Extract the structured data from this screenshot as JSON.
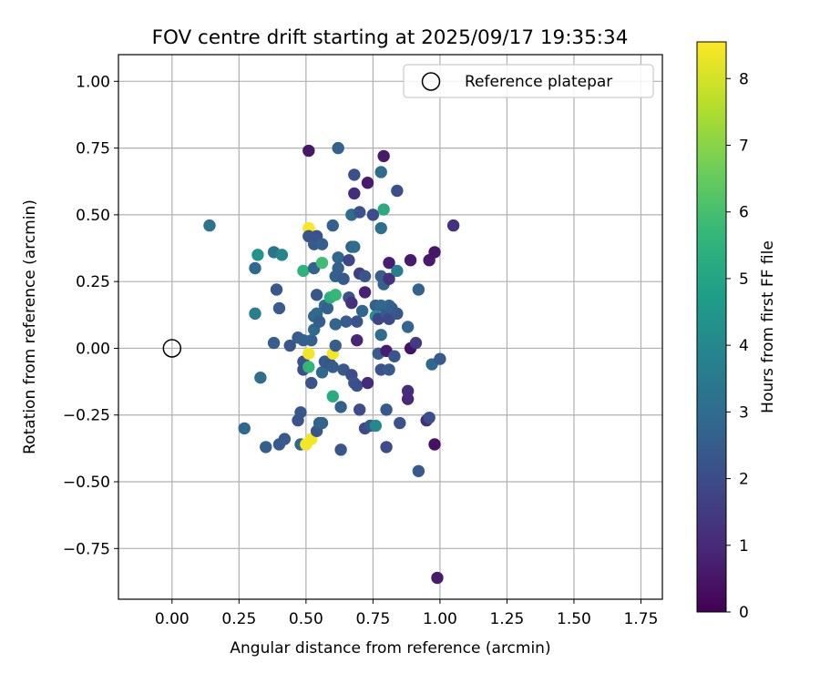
{
  "chart_data": {
    "type": "scatter",
    "title": "FOV centre drift starting at 2025/09/17 19:35:34",
    "xlabel": "Angular distance from reference (arcmin)",
    "ylabel": "Rotation from reference (arcmin)",
    "xlim": [
      -0.2,
      1.83
    ],
    "ylim": [
      -0.94,
      1.1
    ],
    "xticks": [
      0.0,
      0.25,
      0.5,
      0.75,
      1.0,
      1.25,
      1.5,
      1.75
    ],
    "xtick_labels": [
      "0.00",
      "0.25",
      "0.50",
      "0.75",
      "1.00",
      "1.25",
      "1.50",
      "1.75"
    ],
    "yticks": [
      -0.75,
      -0.5,
      -0.25,
      0.0,
      0.25,
      0.5,
      0.75,
      1.0
    ],
    "ytick_labels": [
      "−0.75",
      "−0.50",
      "−0.25",
      "0.00",
      "0.25",
      "0.50",
      "0.75",
      "1.00"
    ],
    "grid": true,
    "legend": {
      "position": "top-right",
      "entries": [
        "Reference platepar"
      ]
    },
    "reference_point": {
      "x": 0.0,
      "y": 0.0,
      "label": "Reference platepar"
    },
    "colorbar": {
      "label": "Hours from first FF file",
      "range": [
        0,
        8.55
      ],
      "ticks": [
        0,
        1,
        2,
        3,
        4,
        5,
        6,
        7,
        8
      ],
      "tick_labels": [
        "0",
        "1",
        "2",
        "3",
        "4",
        "5",
        "6",
        "7",
        "8"
      ],
      "colormap": "viridis",
      "colors": [
        "#440154",
        "#482878",
        "#3e4989",
        "#31688e",
        "#26828e",
        "#1f9e89",
        "#35b779",
        "#6ece58",
        "#b5de2b",
        "#fde725"
      ]
    },
    "points": [
      {
        "x": 0.14,
        "y": 0.46,
        "h": 3.3
      },
      {
        "x": 0.27,
        "y": -0.3,
        "h": 2.9
      },
      {
        "x": 0.31,
        "y": 0.3,
        "h": 2.9
      },
      {
        "x": 0.31,
        "y": 0.13,
        "h": 3.6
      },
      {
        "x": 0.32,
        "y": 0.35,
        "h": 4.4
      },
      {
        "x": 0.33,
        "y": -0.11,
        "h": 3.1
      },
      {
        "x": 0.35,
        "y": -0.37,
        "h": 2.6
      },
      {
        "x": 0.38,
        "y": 0.36,
        "h": 3.3
      },
      {
        "x": 0.38,
        "y": 0.02,
        "h": 2.5
      },
      {
        "x": 0.39,
        "y": 0.22,
        "h": 2.3
      },
      {
        "x": 0.4,
        "y": 0.15,
        "h": 2.5
      },
      {
        "x": 0.4,
        "y": -0.36,
        "h": 2.4
      },
      {
        "x": 0.41,
        "y": 0.35,
        "h": 3.9
      },
      {
        "x": 0.42,
        "y": -0.34,
        "h": 2.4
      },
      {
        "x": 0.44,
        "y": 0.01,
        "h": 2.3
      },
      {
        "x": 0.47,
        "y": -0.27,
        "h": 2.2
      },
      {
        "x": 0.47,
        "y": 0.04,
        "h": 2.5
      },
      {
        "x": 0.48,
        "y": -0.24,
        "h": 2.3
      },
      {
        "x": 0.48,
        "y": -0.36,
        "h": 2.8
      },
      {
        "x": 0.49,
        "y": 0.29,
        "h": 5.5
      },
      {
        "x": 0.49,
        "y": 0.03,
        "h": 2.6
      },
      {
        "x": 0.49,
        "y": -0.05,
        "h": 2.2
      },
      {
        "x": 0.49,
        "y": -0.08,
        "h": 2.1
      },
      {
        "x": 0.5,
        "y": -0.36,
        "h": 8.4
      },
      {
        "x": 0.51,
        "y": 0.74,
        "h": 0.5
      },
      {
        "x": 0.51,
        "y": 0.45,
        "h": 8.5
      },
      {
        "x": 0.51,
        "y": 0.42,
        "h": 2.3
      },
      {
        "x": 0.51,
        "y": -0.02,
        "h": 8.4
      },
      {
        "x": 0.51,
        "y": -0.07,
        "h": 5.6
      },
      {
        "x": 0.52,
        "y": 0.03,
        "h": 2.6
      },
      {
        "x": 0.52,
        "y": -0.13,
        "h": 2.2
      },
      {
        "x": 0.52,
        "y": -0.34,
        "h": 8.4
      },
      {
        "x": 0.53,
        "y": 0.3,
        "h": 2.7
      },
      {
        "x": 0.53,
        "y": 0.39,
        "h": 2.4
      },
      {
        "x": 0.53,
        "y": 0.12,
        "h": 2.8
      },
      {
        "x": 0.53,
        "y": 0.07,
        "h": 2.9
      },
      {
        "x": 0.54,
        "y": -0.31,
        "h": 2.3
      },
      {
        "x": 0.54,
        "y": 0.42,
        "h": 2.2
      },
      {
        "x": 0.54,
        "y": 0.2,
        "h": 2.3
      },
      {
        "x": 0.54,
        "y": 0.13,
        "h": 2.9
      },
      {
        "x": 0.55,
        "y": 0.1,
        "h": 2.5
      },
      {
        "x": 0.55,
        "y": -0.28,
        "h": 2.6
      },
      {
        "x": 0.56,
        "y": 0.39,
        "h": 2.6
      },
      {
        "x": 0.56,
        "y": 0.32,
        "h": 5.9
      },
      {
        "x": 0.56,
        "y": -0.28,
        "h": 2.7
      },
      {
        "x": 0.56,
        "y": -0.09,
        "h": 2.9
      },
      {
        "x": 0.57,
        "y": -0.05,
        "h": 2.4
      },
      {
        "x": 0.57,
        "y": 0.16,
        "h": 3.0
      },
      {
        "x": 0.58,
        "y": 0.15,
        "h": 2.6
      },
      {
        "x": 0.59,
        "y": 0.19,
        "h": 5.4
      },
      {
        "x": 0.59,
        "y": -0.06,
        "h": 2.3
      },
      {
        "x": 0.6,
        "y": 0.46,
        "h": 2.6
      },
      {
        "x": 0.6,
        "y": -0.02,
        "h": 8.4
      },
      {
        "x": 0.6,
        "y": -0.18,
        "h": 5.2
      },
      {
        "x": 0.6,
        "y": -0.07,
        "h": 2.5
      },
      {
        "x": 0.61,
        "y": 0.27,
        "h": 2.6
      },
      {
        "x": 0.61,
        "y": 0.2,
        "h": 5.7
      },
      {
        "x": 0.61,
        "y": 0.09,
        "h": 2.8
      },
      {
        "x": 0.61,
        "y": 0.01,
        "h": 2.5
      },
      {
        "x": 0.62,
        "y": 0.75,
        "h": 2.7
      },
      {
        "x": 0.62,
        "y": 0.34,
        "h": 2.9
      },
      {
        "x": 0.62,
        "y": 0.3,
        "h": 2.6
      },
      {
        "x": 0.63,
        "y": -0.22,
        "h": 2.6
      },
      {
        "x": 0.63,
        "y": -0.38,
        "h": 2.3
      },
      {
        "x": 0.64,
        "y": 0.26,
        "h": 2.4
      },
      {
        "x": 0.64,
        "y": -0.08,
        "h": 2.4
      },
      {
        "x": 0.65,
        "y": 0.1,
        "h": 2.5
      },
      {
        "x": 0.66,
        "y": 0.33,
        "h": 1.8
      },
      {
        "x": 0.66,
        "y": 0.19,
        "h": 2.2
      },
      {
        "x": 0.67,
        "y": 0.5,
        "h": 3.0
      },
      {
        "x": 0.67,
        "y": 0.38,
        "h": 2.6
      },
      {
        "x": 0.67,
        "y": 0.17,
        "h": 1.2
      },
      {
        "x": 0.67,
        "y": -0.1,
        "h": 2.0
      },
      {
        "x": 0.68,
        "y": 0.65,
        "h": 2.1
      },
      {
        "x": 0.68,
        "y": 0.58,
        "h": 1.1
      },
      {
        "x": 0.68,
        "y": 0.38,
        "h": 3.0
      },
      {
        "x": 0.68,
        "y": -0.13,
        "h": 2.3
      },
      {
        "x": 0.69,
        "y": 0.1,
        "h": 2.2
      },
      {
        "x": 0.69,
        "y": 0.03,
        "h": 0.9
      },
      {
        "x": 0.69,
        "y": -0.14,
        "h": 2.1
      },
      {
        "x": 0.7,
        "y": 0.51,
        "h": 2.2
      },
      {
        "x": 0.7,
        "y": 0.28,
        "h": 1.6
      },
      {
        "x": 0.7,
        "y": -0.23,
        "h": 2.0
      },
      {
        "x": 0.71,
        "y": 0.14,
        "h": 2.8
      },
      {
        "x": 0.72,
        "y": 0.27,
        "h": 2.3
      },
      {
        "x": 0.72,
        "y": 0.21,
        "h": 0.8
      },
      {
        "x": 0.72,
        "y": -0.3,
        "h": 1.9
      },
      {
        "x": 0.73,
        "y": 0.62,
        "h": 0.6
      },
      {
        "x": 0.73,
        "y": -0.13,
        "h": 1.0
      },
      {
        "x": 0.74,
        "y": -0.29,
        "h": 2.3
      },
      {
        "x": 0.75,
        "y": 0.5,
        "h": 2.0
      },
      {
        "x": 0.76,
        "y": 0.16,
        "h": 2.6
      },
      {
        "x": 0.76,
        "y": 0.12,
        "h": 4.3
      },
      {
        "x": 0.76,
        "y": -0.29,
        "h": 4.0
      },
      {
        "x": 0.77,
        "y": 0.11,
        "h": 1.8
      },
      {
        "x": 0.77,
        "y": -0.02,
        "h": 2.5
      },
      {
        "x": 0.78,
        "y": 0.66,
        "h": 3.0
      },
      {
        "x": 0.78,
        "y": 0.45,
        "h": 3.1
      },
      {
        "x": 0.78,
        "y": 0.27,
        "h": 2.5
      },
      {
        "x": 0.78,
        "y": 0.16,
        "h": 2.9
      },
      {
        "x": 0.78,
        "y": 0.05,
        "h": 3.0
      },
      {
        "x": 0.78,
        "y": -0.08,
        "h": 2.2
      },
      {
        "x": 0.79,
        "y": 0.72,
        "h": 0.6
      },
      {
        "x": 0.79,
        "y": 0.52,
        "h": 5.2
      },
      {
        "x": 0.79,
        "y": 0.24,
        "h": 2.7
      },
      {
        "x": 0.8,
        "y": 0.13,
        "h": 2.4
      },
      {
        "x": 0.8,
        "y": -0.01,
        "h": 0.7
      },
      {
        "x": 0.8,
        "y": -0.23,
        "h": 2.4
      },
      {
        "x": 0.8,
        "y": -0.37,
        "h": 2.0
      },
      {
        "x": 0.81,
        "y": 0.32,
        "h": 0.7
      },
      {
        "x": 0.81,
        "y": 0.26,
        "h": 1.2
      },
      {
        "x": 0.81,
        "y": 0.16,
        "h": 2.9
      },
      {
        "x": 0.81,
        "y": 0.11,
        "h": 1.9
      },
      {
        "x": 0.81,
        "y": -0.08,
        "h": 2.4
      },
      {
        "x": 0.82,
        "y": 0.15,
        "h": 2.6
      },
      {
        "x": 0.83,
        "y": -0.03,
        "h": 2.3
      },
      {
        "x": 0.84,
        "y": 0.59,
        "h": 2.1
      },
      {
        "x": 0.84,
        "y": 0.29,
        "h": 3.6
      },
      {
        "x": 0.84,
        "y": 0.13,
        "h": 2.3
      },
      {
        "x": 0.85,
        "y": -0.28,
        "h": 2.2
      },
      {
        "x": 0.88,
        "y": 0.08,
        "h": 2.8
      },
      {
        "x": 0.88,
        "y": -0.16,
        "h": 1.1
      },
      {
        "x": 0.88,
        "y": -0.19,
        "h": 1.0
      },
      {
        "x": 0.89,
        "y": 0.33,
        "h": 0.6
      },
      {
        "x": 0.89,
        "y": 0.0,
        "h": 0.4
      },
      {
        "x": 0.91,
        "y": 0.02,
        "h": 1.5
      },
      {
        "x": 0.92,
        "y": 0.22,
        "h": 2.7
      },
      {
        "x": 0.92,
        "y": -0.46,
        "h": 2.4
      },
      {
        "x": 0.95,
        "y": -0.27,
        "h": 1.0
      },
      {
        "x": 0.96,
        "y": 0.33,
        "h": 0.6
      },
      {
        "x": 0.96,
        "y": -0.26,
        "h": 2.1
      },
      {
        "x": 0.97,
        "y": -0.06,
        "h": 2.9
      },
      {
        "x": 0.98,
        "y": 0.36,
        "h": 0.5
      },
      {
        "x": 0.98,
        "y": -0.36,
        "h": 0.4
      },
      {
        "x": 0.99,
        "y": -0.86,
        "h": 0.6
      },
      {
        "x": 1.0,
        "y": -0.04,
        "h": 2.4
      },
      {
        "x": 1.05,
        "y": 0.46,
        "h": 1.2
      }
    ]
  }
}
